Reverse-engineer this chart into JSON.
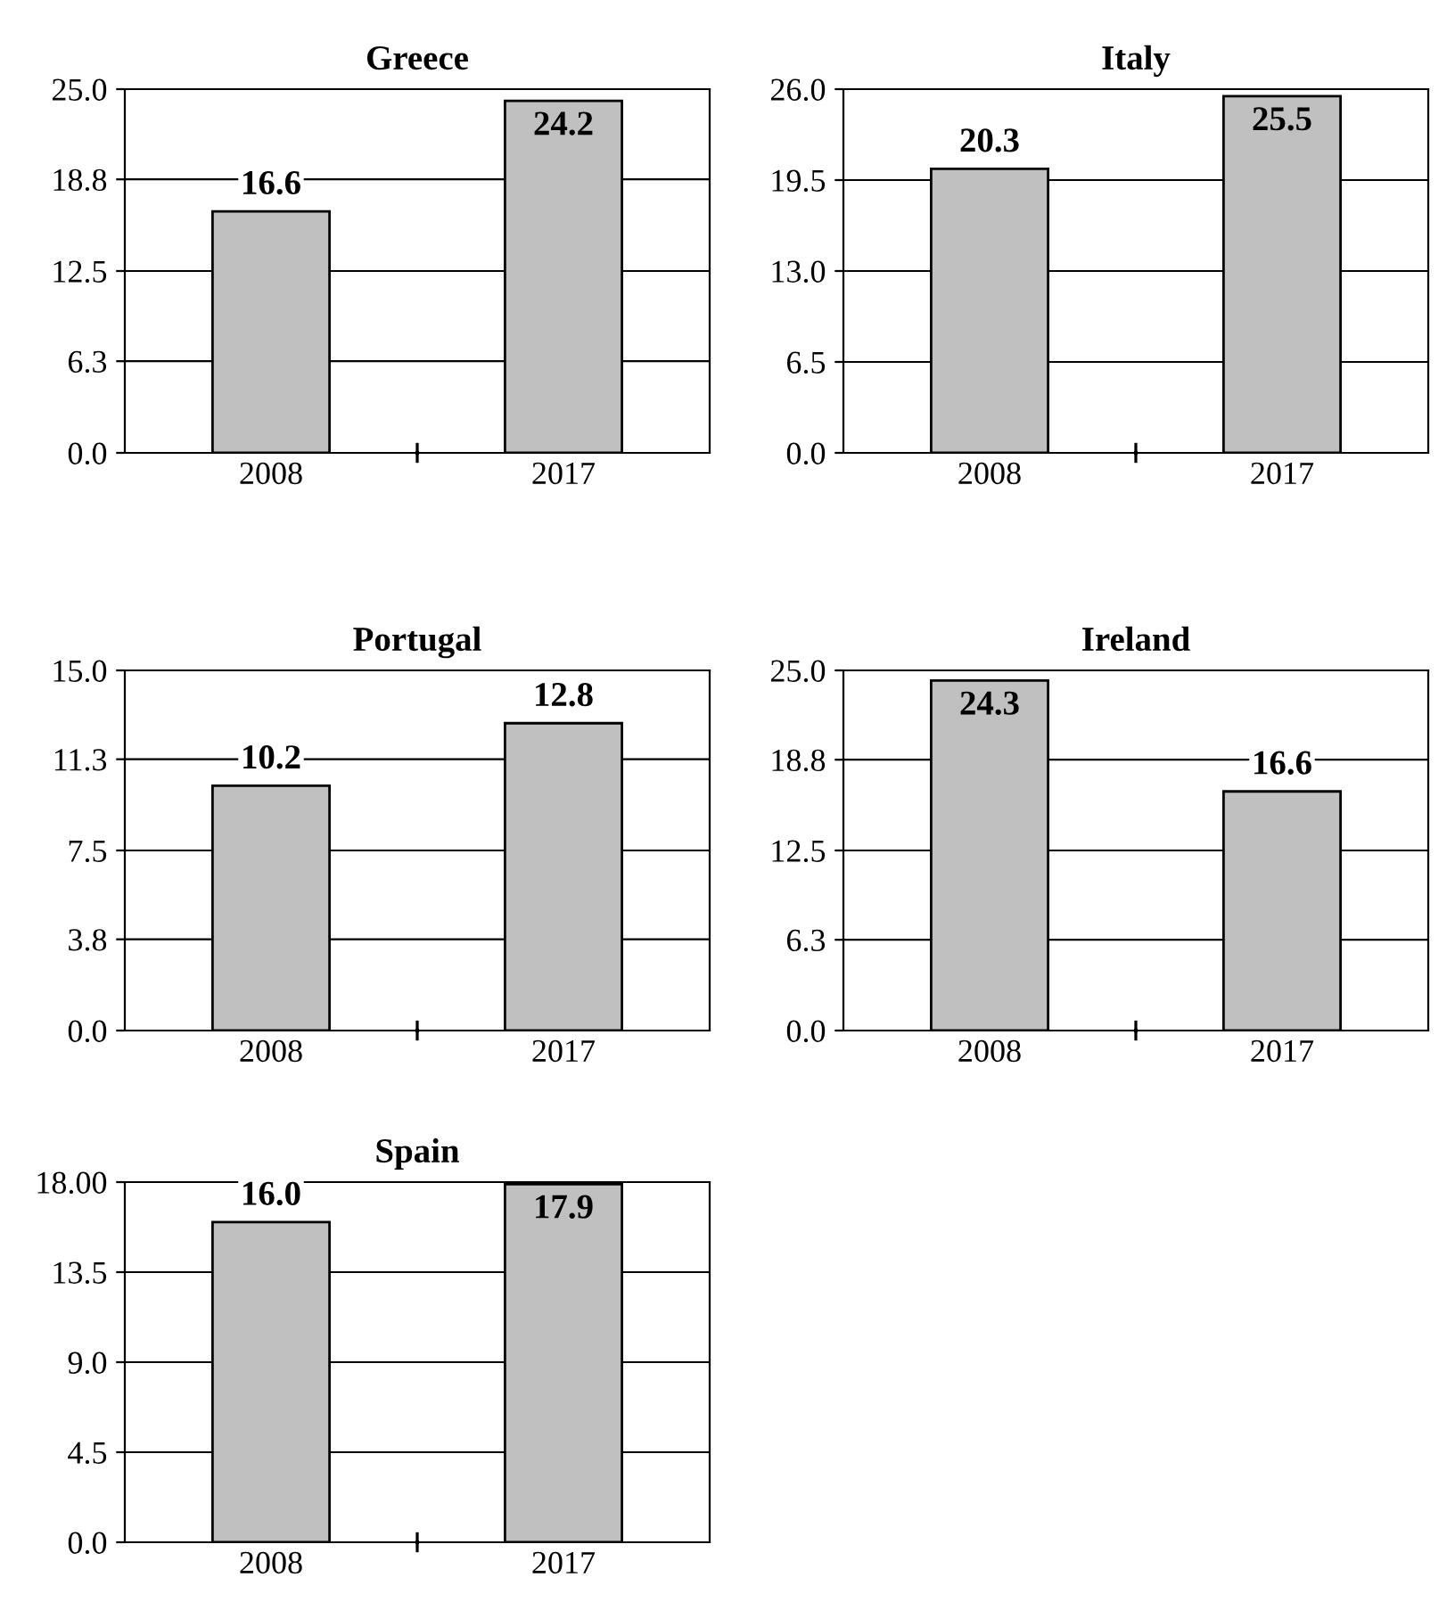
{
  "chart_data": [
    {
      "type": "bar",
      "title": "Greece",
      "categories": [
        "2008",
        "2017"
      ],
      "values": [
        16.6,
        24.2
      ],
      "value_labels": [
        "16.6",
        "24.2"
      ],
      "color": "#c0c0c0",
      "grid": "y",
      "ylim": [
        0,
        25
      ],
      "yticks": [
        {
          "value": 0,
          "label": "0.0"
        },
        6.3,
        12.5,
        18.8,
        {
          "value": 25,
          "label": "25.0"
        }
      ]
    },
    {
      "type": "bar",
      "title": "Italy",
      "categories": [
        "2008",
        "2017"
      ],
      "values": [
        20.3,
        25.5
      ],
      "value_labels": [
        "20.3",
        "25.5"
      ],
      "color": "#c0c0c0",
      "grid": "y",
      "ylim": [
        0,
        26
      ],
      "yticks": [
        {
          "value": 0,
          "label": "0.0"
        },
        6.5,
        {
          "value": 13,
          "label": "13.0"
        },
        19.5,
        {
          "value": 26,
          "label": "26.0"
        }
      ]
    },
    {
      "type": "bar",
      "title": "Portugal",
      "categories": [
        "2008",
        "2017"
      ],
      "values": [
        10.2,
        12.8
      ],
      "value_labels": [
        "10.2",
        "12.8"
      ],
      "color": "#c0c0c0",
      "grid": "y",
      "ylim": [
        0,
        15
      ],
      "yticks": [
        {
          "value": 0,
          "label": "0.0"
        },
        3.8,
        7.5,
        11.3,
        {
          "value": 15,
          "label": "15.0"
        }
      ]
    },
    {
      "type": "bar",
      "title": "Ireland",
      "categories": [
        "2008",
        "2017"
      ],
      "values": [
        24.3,
        16.6
      ],
      "value_labels": [
        "24.3",
        "16.6"
      ],
      "color": "#c0c0c0",
      "grid": "y",
      "ylim": [
        0,
        25
      ],
      "yticks": [
        {
          "value": 0,
          "label": "0.0"
        },
        6.3,
        12.5,
        18.8,
        {
          "value": 25,
          "label": "25.0"
        }
      ]
    },
    {
      "type": "bar",
      "title": "Spain",
      "categories": [
        "2008",
        "2017"
      ],
      "values": [
        16.0,
        17.9
      ],
      "value_labels": [
        "16.0",
        "17.9"
      ],
      "color": "#c0c0c0",
      "grid": "y",
      "ylim": [
        0,
        18
      ],
      "yticks": [
        {
          "value": 0,
          "label": "0.0"
        },
        4.5,
        {
          "value": 9,
          "label": "9.0"
        },
        13.5,
        {
          "value": 18,
          "label": "18.00"
        }
      ]
    }
  ]
}
